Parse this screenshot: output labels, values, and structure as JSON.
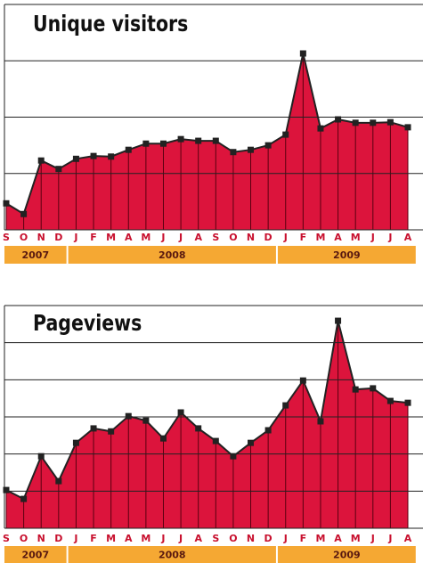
{
  "chart_data": [
    {
      "type": "area",
      "title": "Unique visitors",
      "categories": [
        "S",
        "O",
        "N",
        "D",
        "J",
        "F",
        "M",
        "A",
        "M",
        "J",
        "J",
        "A",
        "S",
        "O",
        "N",
        "D",
        "J",
        "F",
        "M",
        "A",
        "M",
        "J",
        "J",
        "A"
      ],
      "years": [
        "2007",
        "2008",
        "2009"
      ],
      "series": [
        {
          "color": "#dc143c",
          "values": [
            0.47,
            0.28,
            1.23,
            1.08,
            1.26,
            1.31,
            1.3,
            1.42,
            1.53,
            1.53,
            1.61,
            1.58,
            1.58,
            1.38,
            1.42,
            1.5,
            1.69,
            3.13,
            1.8,
            1.96,
            1.9,
            1.9,
            1.91,
            1.82
          ]
        }
      ],
      "ylim": [
        0,
        4
      ],
      "yticks": [
        0,
        1,
        2,
        3,
        4
      ],
      "grid": true
    },
    {
      "type": "area",
      "title": "Pageviews",
      "categories": [
        "S",
        "O",
        "N",
        "D",
        "J",
        "F",
        "M",
        "A",
        "M",
        "J",
        "J",
        "A",
        "S",
        "O",
        "N",
        "D",
        "J",
        "F",
        "M",
        "A",
        "M",
        "J",
        "J",
        "A"
      ],
      "years": [
        "2007",
        "2008",
        "2009"
      ],
      "series": [
        {
          "color": "#dc143c",
          "values": [
            1.03,
            0.79,
            1.94,
            1.27,
            2.3,
            2.69,
            2.61,
            3.02,
            2.9,
            2.42,
            3.12,
            2.69,
            2.35,
            1.94,
            2.3,
            2.64,
            3.31,
            3.98,
            2.88,
            5.59,
            3.74,
            3.77,
            3.43,
            3.38
          ]
        }
      ],
      "ylim": [
        0,
        6
      ],
      "yticks": [
        0,
        1,
        2,
        3,
        4,
        5,
        6
      ],
      "grid": true
    }
  ]
}
